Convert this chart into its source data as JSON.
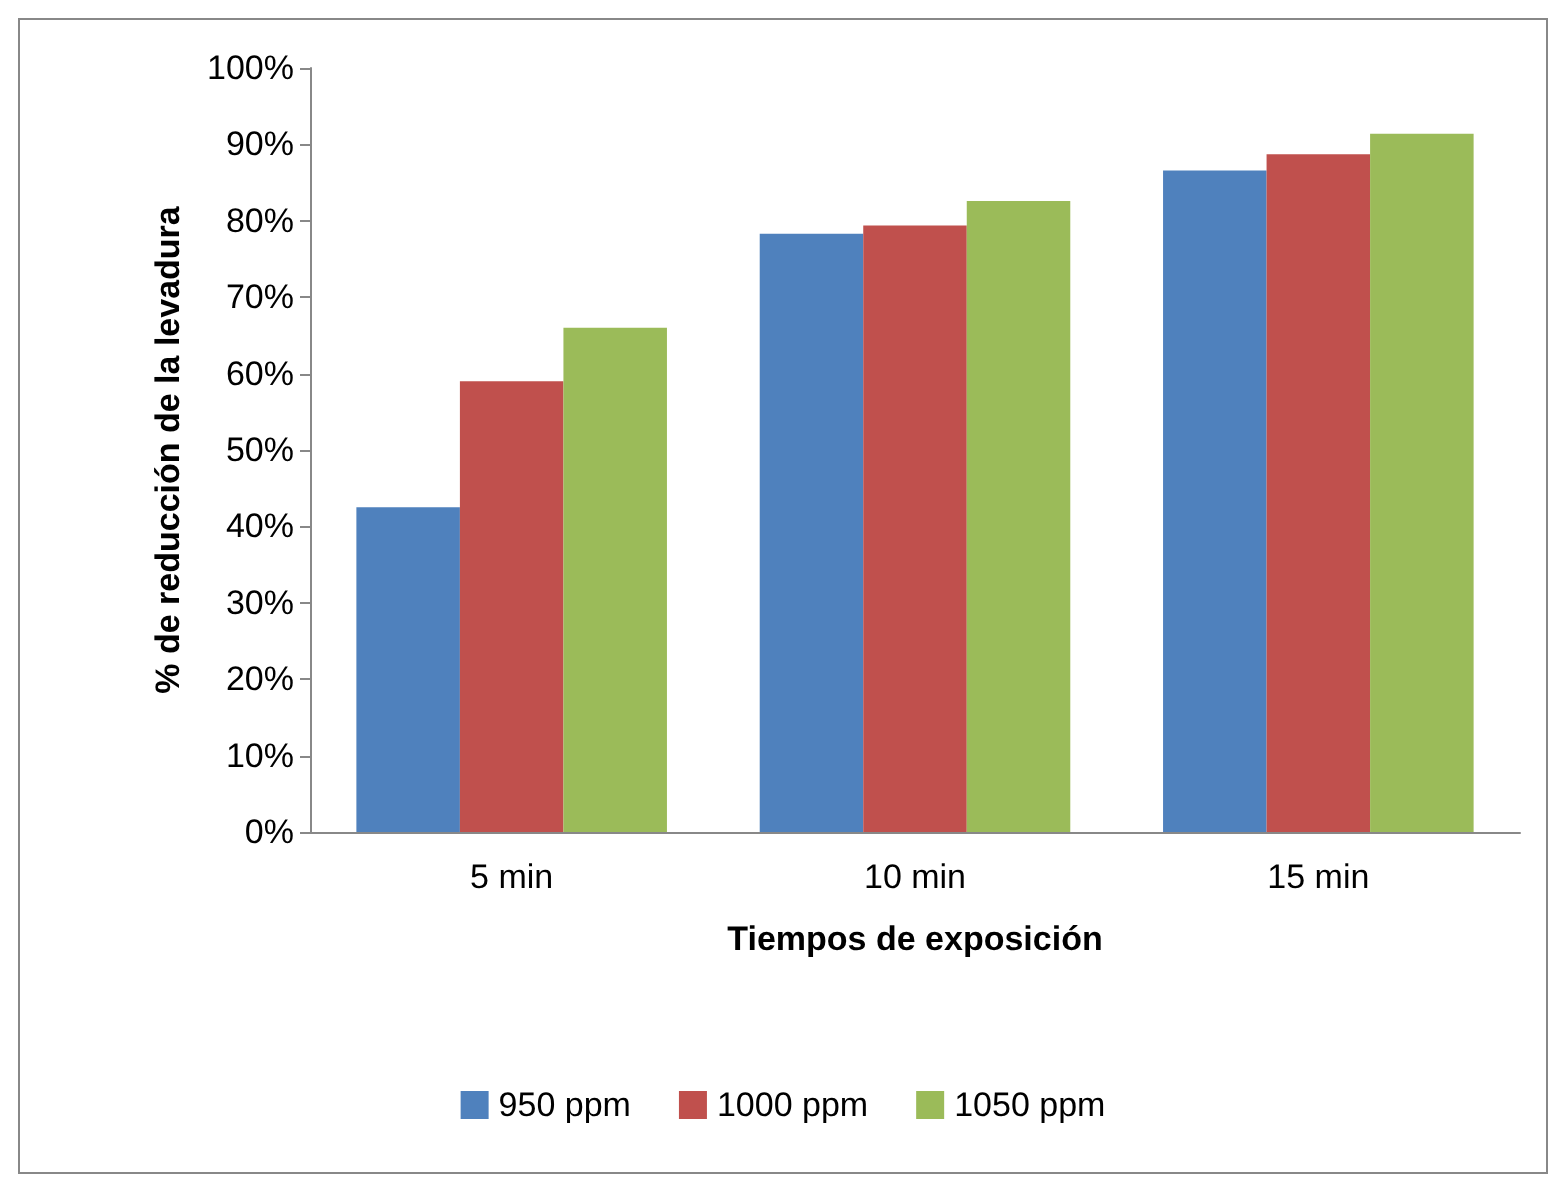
{
  "chart_data": {
    "type": "bar",
    "xlabel": "Tiempos de exposición",
    "ylabel": "% de reducción de la levadura",
    "categories": [
      "5 min",
      "10 min",
      "15 min"
    ],
    "series": [
      {
        "name": "950 ppm",
        "color": "#4f81bd",
        "values": [
          42.5,
          78.3,
          86.6
        ]
      },
      {
        "name": "1000 ppm",
        "color": "#c0504d",
        "values": [
          59,
          79.4,
          88.7
        ]
      },
      {
        "name": "1050 ppm",
        "color": "#9bbb59",
        "values": [
          66,
          82.6,
          91.4
        ]
      }
    ],
    "ylim": [
      0,
      100
    ],
    "yticks": [
      {
        "value": 0,
        "label": "0%"
      },
      {
        "value": 10,
        "label": "10%"
      },
      {
        "value": 20,
        "label": "20%"
      },
      {
        "value": 30,
        "label": "30%"
      },
      {
        "value": 40,
        "label": "40%"
      },
      {
        "value": 50,
        "label": "50%"
      },
      {
        "value": 60,
        "label": "60%"
      },
      {
        "value": 70,
        "label": "70%"
      },
      {
        "value": 80,
        "label": "80%"
      },
      {
        "value": 90,
        "label": "90%"
      },
      {
        "value": 100,
        "label": "100%"
      }
    ],
    "grid": false,
    "legend": "bottom"
  }
}
